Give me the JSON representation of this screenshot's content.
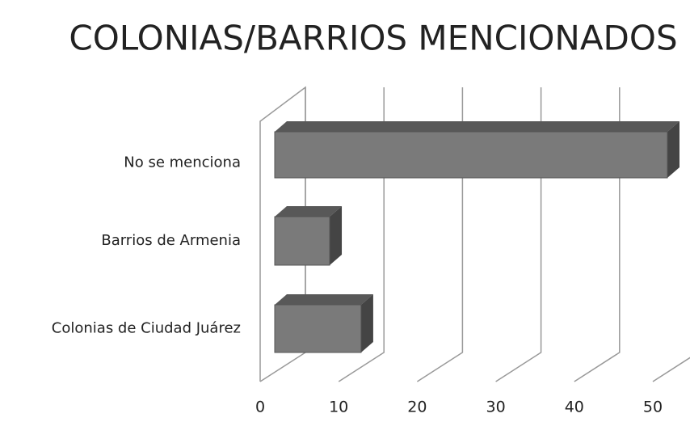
{
  "chart_data": {
    "type": "bar3d_horizontal",
    "title": "COLONIAS/BARRIOS MENCIONADOS",
    "categories": [
      "No se menciona",
      "Barrios de Armenia",
      "Colonias de Ciudad Juárez"
    ],
    "values": [
      50,
      7,
      11
    ],
    "color": "#7a7a7a",
    "xlim": [
      0,
      50
    ],
    "xticks": [
      0,
      10,
      20,
      30,
      40,
      50
    ],
    "grid": true
  }
}
